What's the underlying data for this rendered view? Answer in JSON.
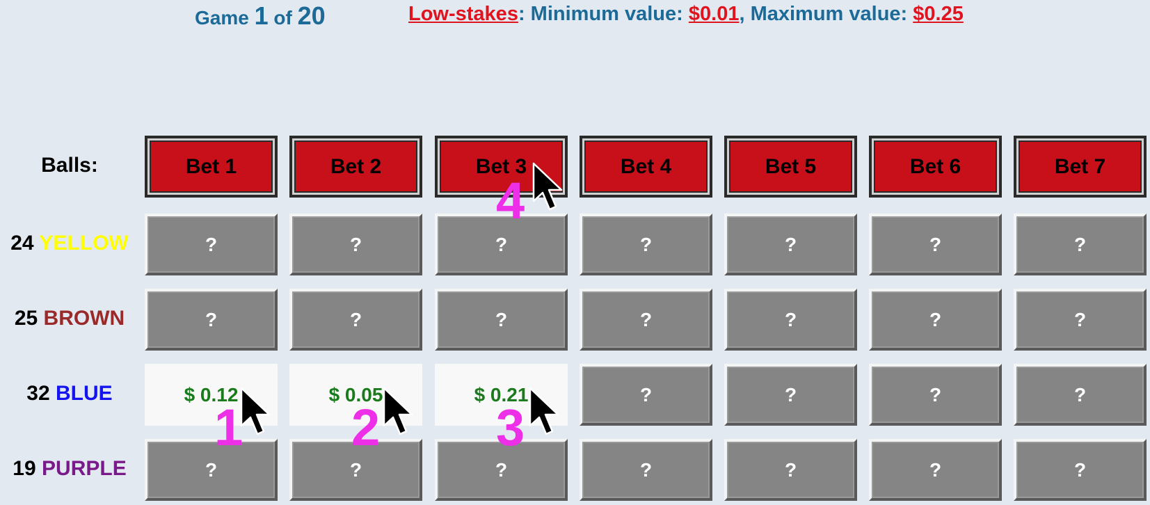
{
  "header": {
    "game_prefix": "Game ",
    "game_number": "1",
    "game_of": " of ",
    "game_total": "20",
    "stakes_label": "Low-stakes",
    "min_label": ": Minimum value: ",
    "min_value": "$0.01",
    "separator": ", ",
    "max_label": "Maximum value: ",
    "max_value": "$0.25"
  },
  "balls_label": "Balls:",
  "bets": [
    "Bet 1",
    "Bet 2",
    "Bet 3",
    "Bet 4",
    "Bet 5",
    "Bet 6",
    "Bet 7"
  ],
  "rows": [
    {
      "count": "24",
      "color_name": "YELLOW",
      "color": "#ffff00"
    },
    {
      "count": "25",
      "color_name": "BROWN",
      "color": "#9a2a2a"
    },
    {
      "count": "32",
      "color_name": "BLUE",
      "color": "#1414f0"
    },
    {
      "count": "19",
      "color_name": "PURPLE",
      "color": "#7a1a8a"
    }
  ],
  "cells": [
    [
      "?",
      "?",
      "?",
      "?",
      "?",
      "?",
      "?"
    ],
    [
      "?",
      "?",
      "?",
      "?",
      "?",
      "?",
      "?"
    ],
    [
      "$ 0.12",
      "$ 0.05",
      "$ 0.21",
      "?",
      "?",
      "?",
      "?"
    ],
    [
      "?",
      "?",
      "?",
      "?",
      "?",
      "?",
      "?"
    ]
  ],
  "revealed": [
    [
      false,
      false,
      false,
      false,
      false,
      false,
      false
    ],
    [
      false,
      false,
      false,
      false,
      false,
      false,
      false
    ],
    [
      true,
      true,
      true,
      false,
      false,
      false,
      false
    ],
    [
      false,
      false,
      false,
      false,
      false,
      false,
      false
    ]
  ],
  "annotations": [
    "1",
    "2",
    "3",
    "4"
  ],
  "colors": {
    "background": "#e2e9f1",
    "header_blue": "#1c6a98",
    "stakes_red": "#e0141e",
    "bet_red": "#c8101a",
    "cell_gray": "#858585",
    "value_green": "#1b7a1b",
    "annotation_magenta": "#ee2fe8"
  }
}
